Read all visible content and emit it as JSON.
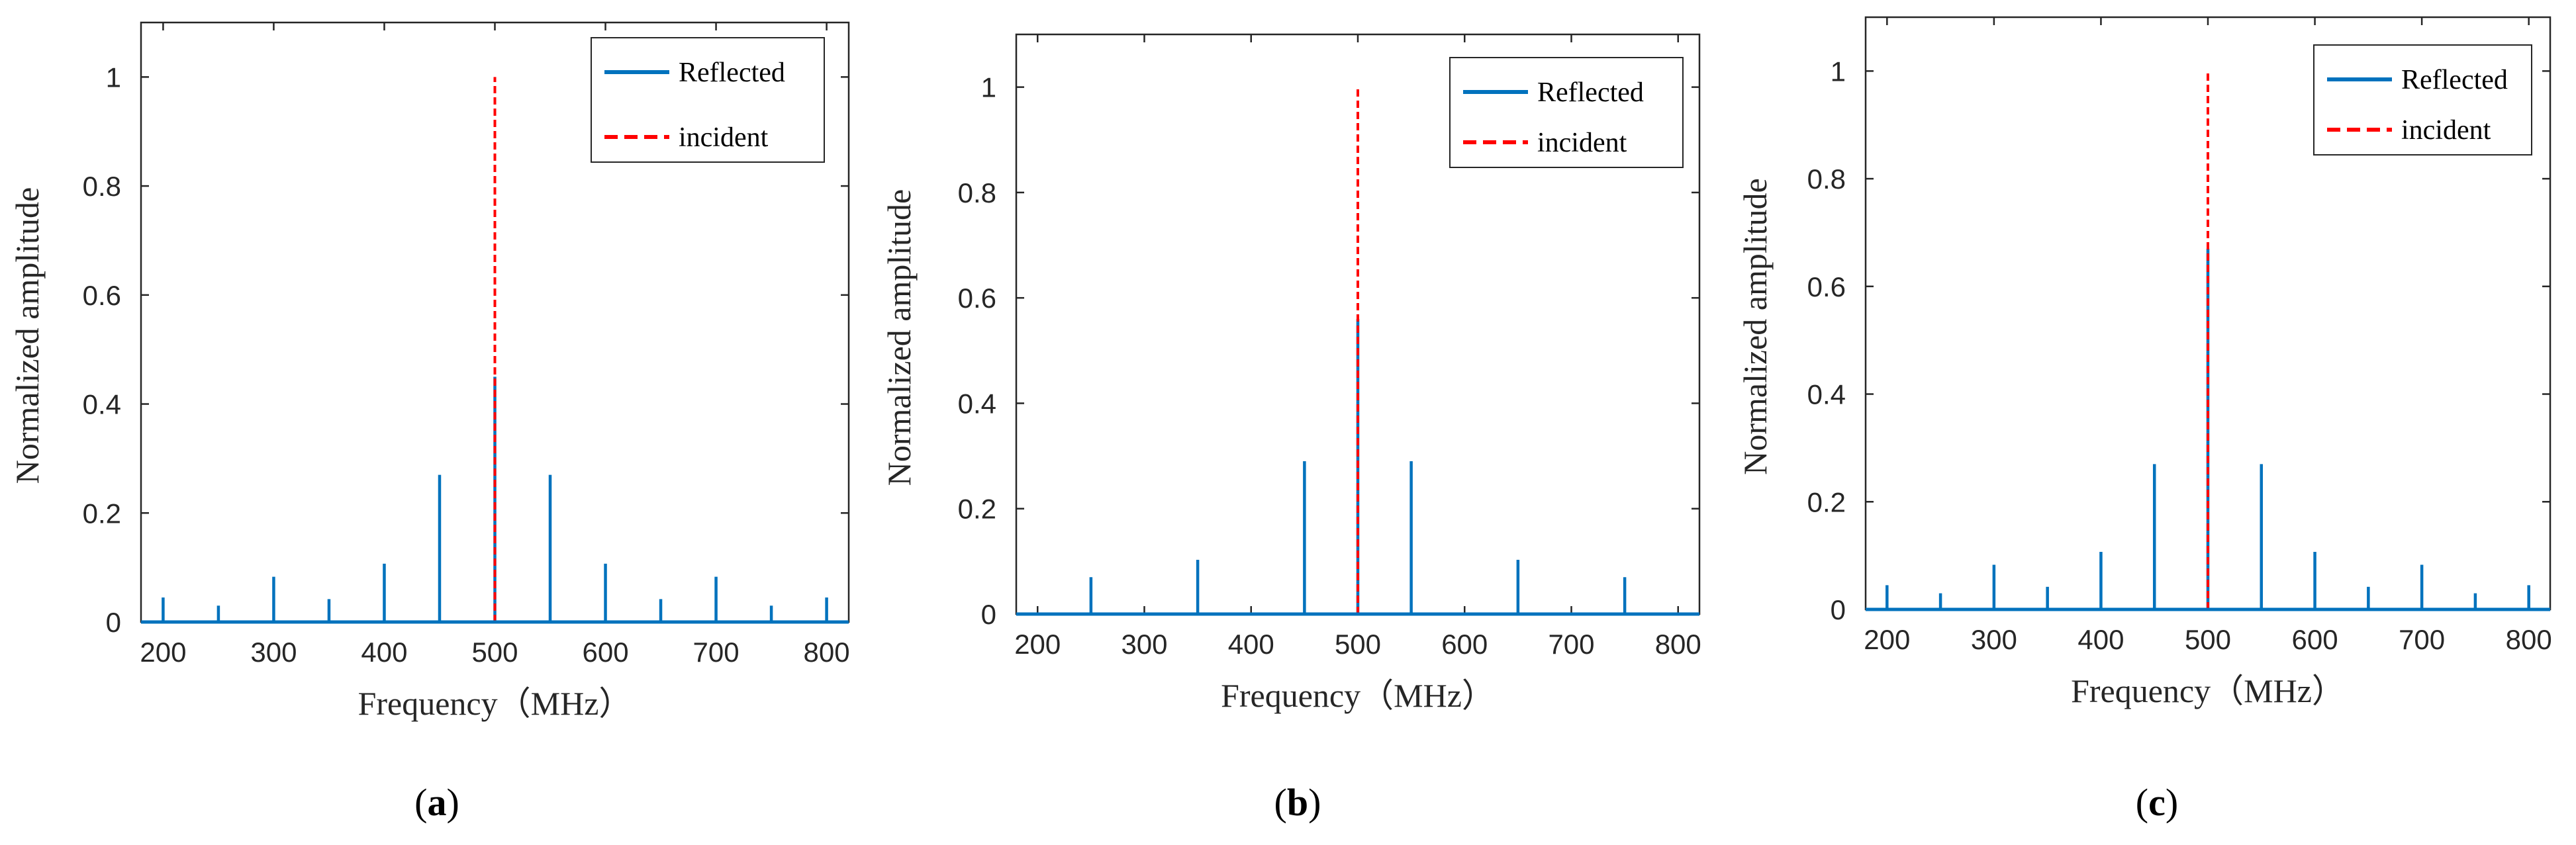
{
  "chart_data": [
    {
      "type": "stem",
      "caption": "a",
      "xlabel": "Frequency（MHz）",
      "ylabel": "Normalized amplitude",
      "xlim": [
        180,
        820
      ],
      "ylim": [
        0,
        1.1
      ],
      "xticks": [
        200,
        300,
        400,
        500,
        600,
        700,
        800
      ],
      "yticks": [
        0,
        0.2,
        0.4,
        0.6,
        0.8,
        1
      ],
      "series": [
        {
          "name": "Reflected",
          "color": "#0072BD",
          "style": "solid",
          "x": [
            200,
            250,
            300,
            350,
            400,
            450,
            500,
            550,
            600,
            650,
            700,
            750,
            800
          ],
          "y": [
            0.045,
            0.03,
            0.083,
            0.042,
            0.107,
            0.27,
            0.45,
            0.27,
            0.107,
            0.042,
            0.083,
            0.03,
            0.045
          ]
        },
        {
          "name": "incident",
          "color": "#FF0000",
          "style": "dashed",
          "x": [
            500
          ],
          "y": [
            1.0
          ]
        }
      ],
      "legend_position": "top-right"
    },
    {
      "type": "stem",
      "caption": "b",
      "xlabel": "Frequency（MHz）",
      "ylabel": "Normalized amplitude",
      "xlim": [
        180,
        820
      ],
      "ylim": [
        0,
        1.1
      ],
      "xticks": [
        200,
        300,
        400,
        500,
        600,
        700,
        800
      ],
      "yticks": [
        0,
        0.2,
        0.4,
        0.6,
        0.8,
        1
      ],
      "series": [
        {
          "name": "Reflected",
          "color": "#0072BD",
          "style": "solid",
          "x": [
            250,
            350,
            450,
            500,
            550,
            650,
            750
          ],
          "y": [
            0.07,
            0.103,
            0.29,
            0.56,
            0.29,
            0.103,
            0.07
          ]
        },
        {
          "name": "incident",
          "color": "#FF0000",
          "style": "dashed",
          "x": [
            500
          ],
          "y": [
            1.0
          ]
        }
      ],
      "legend_position": "top-right"
    },
    {
      "type": "stem",
      "caption": "c",
      "xlabel": "Frequency（MHz）",
      "ylabel": "Normalized amplitude",
      "xlim": [
        180,
        820
      ],
      "ylim": [
        0,
        1.1
      ],
      "xticks": [
        200,
        300,
        400,
        500,
        600,
        700,
        800
      ],
      "yticks": [
        0,
        0.2,
        0.4,
        0.6,
        0.8,
        1
      ],
      "series": [
        {
          "name": "Reflected",
          "color": "#0072BD",
          "style": "solid",
          "x": [
            200,
            250,
            300,
            350,
            400,
            450,
            500,
            550,
            600,
            650,
            700,
            750,
            800
          ],
          "y": [
            0.045,
            0.03,
            0.083,
            0.042,
            0.107,
            0.27,
            0.67,
            0.27,
            0.107,
            0.042,
            0.083,
            0.03,
            0.045
          ]
        },
        {
          "name": "incident",
          "color": "#FF0000",
          "style": "dashed",
          "x": [
            500
          ],
          "y": [
            1.0
          ]
        }
      ],
      "legend_position": "top-right"
    }
  ]
}
